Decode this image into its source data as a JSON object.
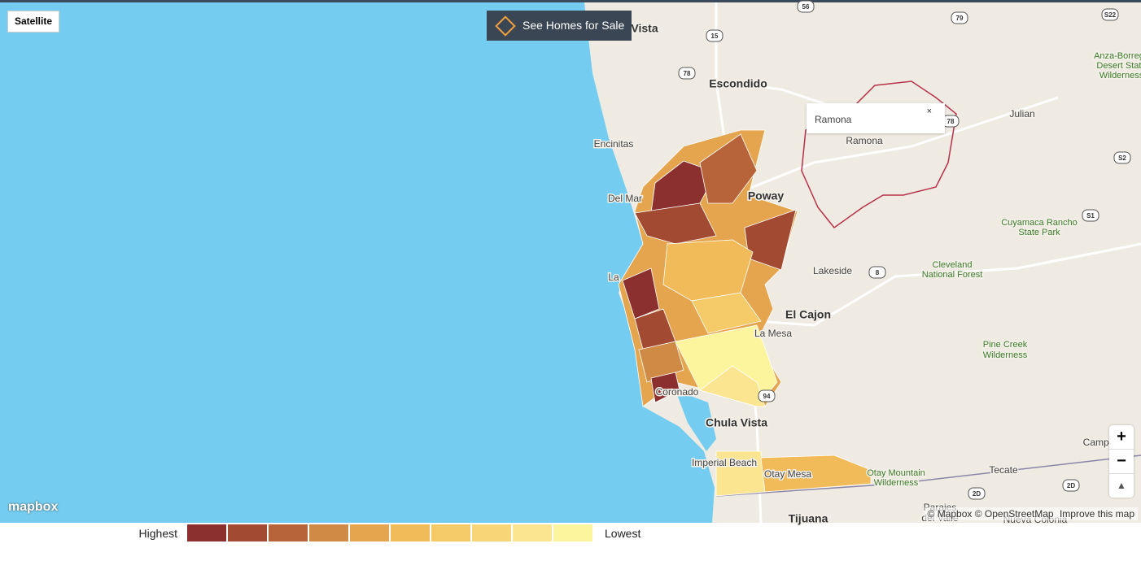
{
  "controls": {
    "satellite": "Satellite",
    "cta": "See Homes for Sale",
    "zoom_in": "+",
    "zoom_out": "−"
  },
  "popup": {
    "title": "Ramona",
    "close": "×"
  },
  "map_labels": [
    "Vista",
    "Escondido",
    "Encinitas",
    "Del Mar",
    "Poway",
    "Ramona",
    "Julian",
    "Anza-Borrego",
    "Desert State",
    "Wilderness",
    "Cuyamaca Rancho",
    "State Park",
    "Lakeside",
    "El Cajon",
    "La Mesa",
    "Cleveland",
    "National Forest",
    "Pine Creek",
    "Wilderness",
    "Coronado",
    "Chula Vista",
    "Imperial Beach",
    "Otay Mesa",
    "Otay Mountain",
    "Wilderness",
    "Tecate",
    "Campo",
    "Tijuana",
    "Parajes",
    "del Valle",
    "Nueva Colonia",
    "La"
  ],
  "shields": [
    "56",
    "79",
    "S22",
    "15",
    "78",
    "78",
    "S2",
    "S1",
    "8",
    "94",
    "2D",
    "2D"
  ],
  "legend": {
    "high": "Highest",
    "low": "Lowest",
    "colors": [
      "#8b2f2f",
      "#a34a33",
      "#b8643a",
      "#cf8a45",
      "#e5a54f",
      "#f0bb58",
      "#f5ca68",
      "#f8d677",
      "#fbe590",
      "#fdf59e"
    ]
  },
  "attribution": {
    "logo": "mapbox",
    "credits": "© Mapbox © OpenStreetMap",
    "improve": "Improve this map"
  }
}
